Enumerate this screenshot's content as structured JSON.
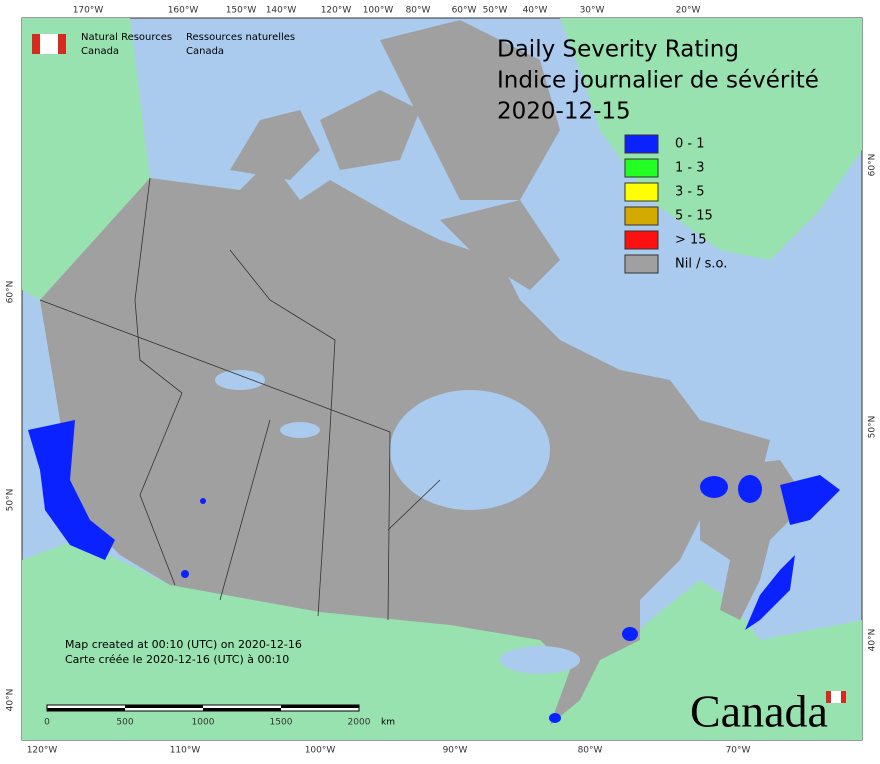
{
  "header": {
    "department_en": [
      "Natural Resources",
      "Canada"
    ],
    "department_fr": [
      "Ressources naturelles",
      "Canada"
    ]
  },
  "title": [
    "Daily Severity Rating",
    "Indice journalier de sévérité",
    "2020-12-15"
  ],
  "legend": [
    {
      "label": "0 - 1",
      "color": "#0a22ff"
    },
    {
      "label": "1 - 3",
      "color": "#22ff22"
    },
    {
      "label": "3 - 5",
      "color": "#ffff00"
    },
    {
      "label": "5 - 15",
      "color": "#d4aa00"
    },
    {
      "label": "> 15",
      "color": "#ff1010"
    },
    {
      "label": "Nil / s.o.",
      "color": "#a0a0a0"
    }
  ],
  "graticule": {
    "top": [
      "170°W",
      "160°W",
      "150°W",
      "140°W",
      "120°W",
      "100°W",
      "80°W",
      "60°W",
      "50°W",
      "40°W",
      "30°W",
      "20°W"
    ],
    "bottom": [
      "120°W",
      "110°W",
      "100°W",
      "90°W",
      "80°W",
      "70°W"
    ],
    "left": [
      "60°N",
      "50°N",
      "40°N"
    ],
    "right": [
      "60°N",
      "50°N",
      "40°N"
    ]
  },
  "note": [
    "Map created at 00:10 (UTC) on 2020-12-16",
    "Carte créée le 2020-12-16 (UTC) à 00:10"
  ],
  "scale_bar": {
    "labels": [
      "0",
      "500",
      "1000",
      "1500",
      "2000"
    ],
    "unit": "km"
  },
  "wordmark": "Canada"
}
